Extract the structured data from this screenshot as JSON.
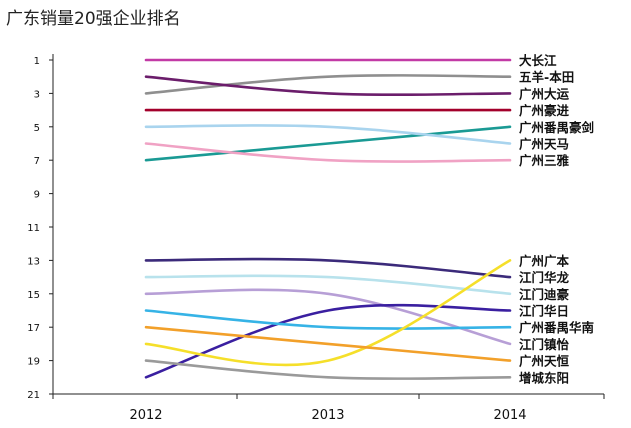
{
  "chart_data": {
    "type": "line",
    "title": "广东销量20强企业排名",
    "xlabel": "",
    "ylabel": "",
    "categories": [
      "2012",
      "2013",
      "2014"
    ],
    "y_reversed": true,
    "ylim": [
      1,
      21
    ],
    "yticks": [
      1,
      3,
      5,
      7,
      9,
      11,
      13,
      15,
      17,
      19,
      21
    ],
    "grid": false,
    "legend": "end-of-line labels",
    "series": [
      {
        "name": "大长江",
        "values": [
          1,
          1,
          1
        ],
        "color": "#c23aa6"
      },
      {
        "name": "五羊-本田",
        "values": [
          3,
          2,
          2
        ],
        "color": "#8f8f8f"
      },
      {
        "name": "广州大运",
        "values": [
          2,
          3,
          3
        ],
        "color": "#6b1d6b"
      },
      {
        "name": "广州豪进",
        "values": [
          4,
          4,
          4
        ],
        "color": "#a3002b"
      },
      {
        "name": "广州番禺豪剑",
        "values": [
          7,
          6,
          5
        ],
        "color": "#1a9a94"
      },
      {
        "name": "广州天马",
        "values": [
          5,
          5,
          6
        ],
        "color": "#a9d4ee"
      },
      {
        "name": "广州三雅",
        "values": [
          6,
          7,
          7
        ],
        "color": "#f0a2c4"
      },
      {
        "name": "江门华龙",
        "values": [
          13,
          13,
          14
        ],
        "color": "#3b2a7a"
      },
      {
        "name": "江门迪豪",
        "values": [
          14,
          14,
          15
        ],
        "color": "#b8e2ec"
      },
      {
        "name": "江门镇怡",
        "values": [
          15,
          15,
          18
        ],
        "color": "#b79fd6"
      },
      {
        "name": "江门华日",
        "values": [
          20,
          16,
          16
        ],
        "color": "#3a1fa0"
      },
      {
        "name": "广州番禺华南",
        "values": [
          16,
          17,
          17
        ],
        "color": "#36b3e6"
      },
      {
        "name": "广州广本",
        "values": [
          18,
          19,
          13
        ],
        "color": "#f5df2a"
      },
      {
        "name": "广州天恒",
        "values": [
          17,
          18,
          19
        ],
        "color": "#f2a02a"
      },
      {
        "name": "增城东阳",
        "values": [
          19,
          20,
          20
        ],
        "color": "#9a9a9a"
      }
    ],
    "end_labels": [
      "大长江",
      "五羊-本田",
      "广州大运",
      "广州豪进",
      "广州番禺豪剑",
      "广州天马",
      "广州三雅",
      "江门华龙",
      "江门迪豪",
      "江门镇怡",
      "江门华日",
      "广州番禺华南",
      "广州广本",
      "广州天恒",
      "增城东阳"
    ]
  }
}
